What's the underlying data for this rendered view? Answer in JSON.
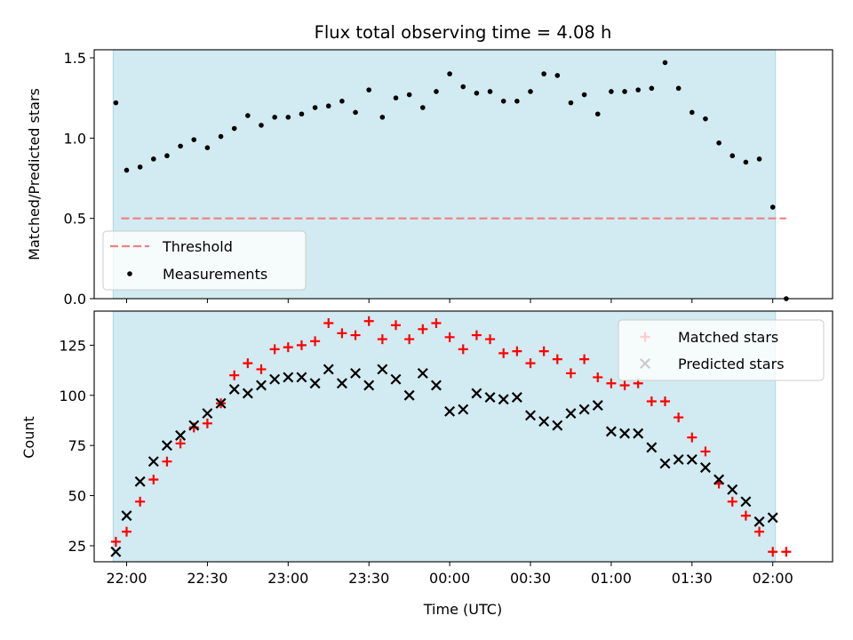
{
  "chart_data": [
    {
      "type": "scatter",
      "title": "Flux total observing time = 4.08 h",
      "xlabel": "",
      "ylabel": "Matched/Predicted stars",
      "ylim": [
        0,
        1.55
      ],
      "yticks": [
        "0.0",
        "0.5",
        "1.0",
        "1.5"
      ],
      "shaded_region": {
        "from": "21:55",
        "to": "02:01",
        "color": "#add8e6"
      },
      "legend": {
        "position": "lower-left",
        "entries": [
          "Threshold",
          "Measurements"
        ]
      },
      "threshold": {
        "name": "Threshold",
        "value": 0.5,
        "from": "21:58",
        "to": "02:05",
        "color": "#f08080",
        "style": "dashed"
      },
      "series": [
        {
          "name": "Measurements",
          "color": "#000000",
          "marker": "dot",
          "x": [
            "21:56",
            "22:00",
            "22:05",
            "22:10",
            "22:15",
            "22:20",
            "22:25",
            "22:30",
            "22:35",
            "22:40",
            "22:45",
            "22:50",
            "22:55",
            "23:00",
            "23:05",
            "23:10",
            "23:15",
            "23:20",
            "23:25",
            "23:30",
            "23:35",
            "23:40",
            "23:45",
            "23:50",
            "23:55",
            "00:00",
            "00:05",
            "00:10",
            "00:15",
            "00:20",
            "00:25",
            "00:30",
            "00:35",
            "00:40",
            "00:45",
            "00:50",
            "00:55",
            "01:00",
            "01:05",
            "01:10",
            "01:15",
            "01:20",
            "01:25",
            "01:30",
            "01:35",
            "01:40",
            "01:45",
            "01:50",
            "01:55",
            "02:00",
            "02:05"
          ],
          "y": [
            1.22,
            0.8,
            0.82,
            0.87,
            0.89,
            0.95,
            0.99,
            0.94,
            1.01,
            1.06,
            1.14,
            1.08,
            1.13,
            1.13,
            1.15,
            1.19,
            1.2,
            1.23,
            1.16,
            1.3,
            1.13,
            1.25,
            1.27,
            1.19,
            1.29,
            1.4,
            1.32,
            1.28,
            1.29,
            1.23,
            1.23,
            1.29,
            1.4,
            1.39,
            1.22,
            1.27,
            1.15,
            1.29,
            1.29,
            1.3,
            1.31,
            1.47,
            1.31,
            1.16,
            1.12,
            0.97,
            0.89,
            0.85,
            0.87,
            0.57,
            0.0
          ]
        }
      ]
    },
    {
      "type": "scatter",
      "title": "",
      "xlabel": "Time (UTC)",
      "ylabel": "Count",
      "ylim": [
        17,
        142
      ],
      "yticks": [
        "25",
        "50",
        "75",
        "100",
        "125"
      ],
      "x_tick_labels": [
        "22:00",
        "22:30",
        "23:00",
        "23:30",
        "00:00",
        "00:30",
        "01:00",
        "01:30",
        "02:00"
      ],
      "shaded_region": {
        "from": "21:55",
        "to": "02:01",
        "color": "#add8e6"
      },
      "legend": {
        "position": "top-right",
        "entries": [
          "Matched stars",
          "Predicted stars"
        ]
      },
      "x": [
        "21:56",
        "22:00",
        "22:05",
        "22:10",
        "22:15",
        "22:20",
        "22:25",
        "22:30",
        "22:35",
        "22:40",
        "22:45",
        "22:50",
        "22:55",
        "23:00",
        "23:05",
        "23:10",
        "23:15",
        "23:20",
        "23:25",
        "23:30",
        "23:35",
        "23:40",
        "23:45",
        "23:50",
        "23:55",
        "00:00",
        "00:05",
        "00:10",
        "00:15",
        "00:20",
        "00:25",
        "00:30",
        "00:35",
        "00:40",
        "00:45",
        "00:50",
        "00:55",
        "01:00",
        "01:05",
        "01:10",
        "01:15",
        "01:20",
        "01:25",
        "01:30",
        "01:35",
        "01:40",
        "01:45",
        "01:50",
        "01:55",
        "02:00",
        "02:05"
      ],
      "series": [
        {
          "name": "Matched stars",
          "color": "#ff0000",
          "marker": "plus",
          "y": [
            27,
            32,
            47,
            58,
            67,
            76,
            84,
            86,
            96,
            110,
            116,
            113,
            123,
            124,
            125,
            127,
            136,
            131,
            130,
            137,
            128,
            135,
            128,
            133,
            136,
            129,
            123,
            130,
            128,
            121,
            122,
            116,
            122,
            118,
            111,
            118,
            109,
            106,
            105,
            106,
            97,
            97,
            89,
            79,
            72,
            56,
            47,
            40,
            32,
            22,
            22
          ]
        },
        {
          "name": "Predicted stars",
          "color": "#000000",
          "marker": "x",
          "y": [
            22,
            40,
            57,
            67,
            75,
            80,
            85,
            91,
            96,
            103,
            101,
            105,
            108,
            109,
            109,
            106,
            113,
            106,
            111,
            105,
            113,
            108,
            100,
            111,
            105,
            92,
            93,
            101,
            99,
            98,
            99,
            90,
            87,
            85,
            91,
            93,
            95,
            82,
            81,
            81,
            74,
            66,
            68,
            68,
            64,
            58,
            53,
            47,
            37,
            39,
            null
          ]
        }
      ]
    }
  ]
}
